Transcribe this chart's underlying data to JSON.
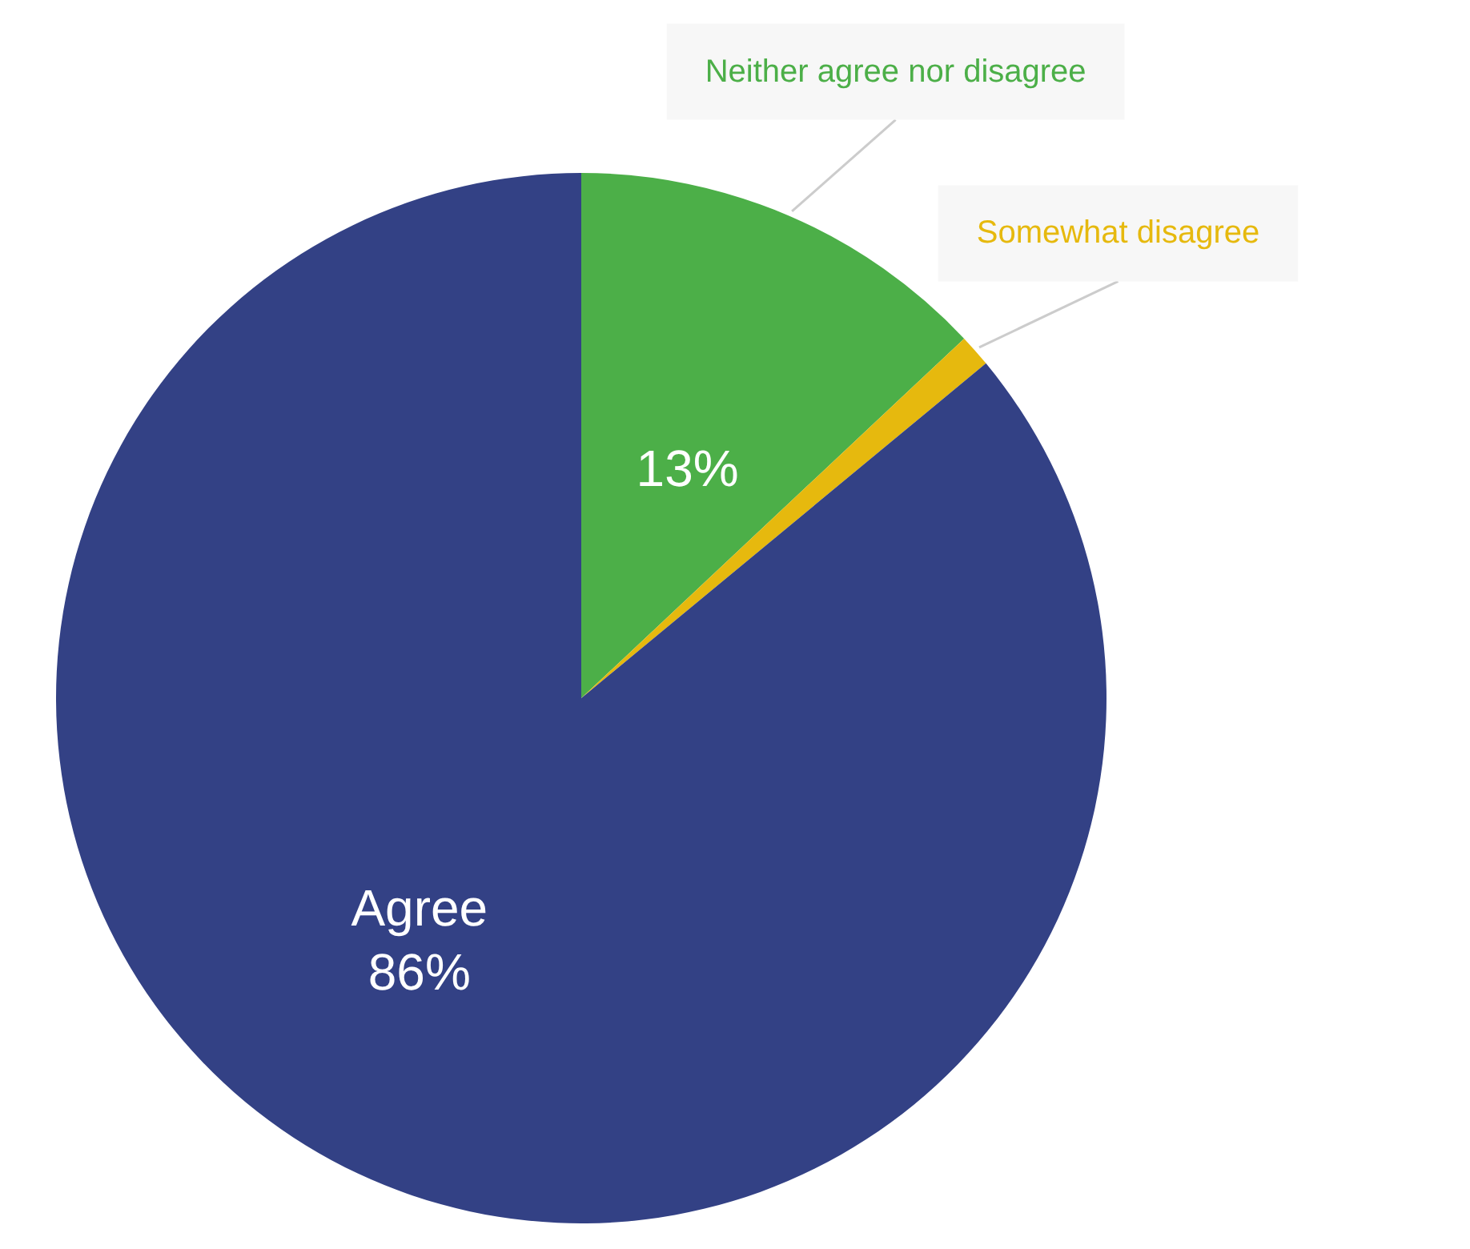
{
  "chart_data": {
    "type": "pie",
    "categories": [
      "Neither agree nor disagree",
      "Somewhat disagree",
      "Agree"
    ],
    "values": [
      13,
      1,
      86
    ],
    "colors": [
      "#4caf48",
      "#e6b90e",
      "#334185"
    ],
    "value_labels": [
      "13%",
      null,
      "86%"
    ]
  }
}
